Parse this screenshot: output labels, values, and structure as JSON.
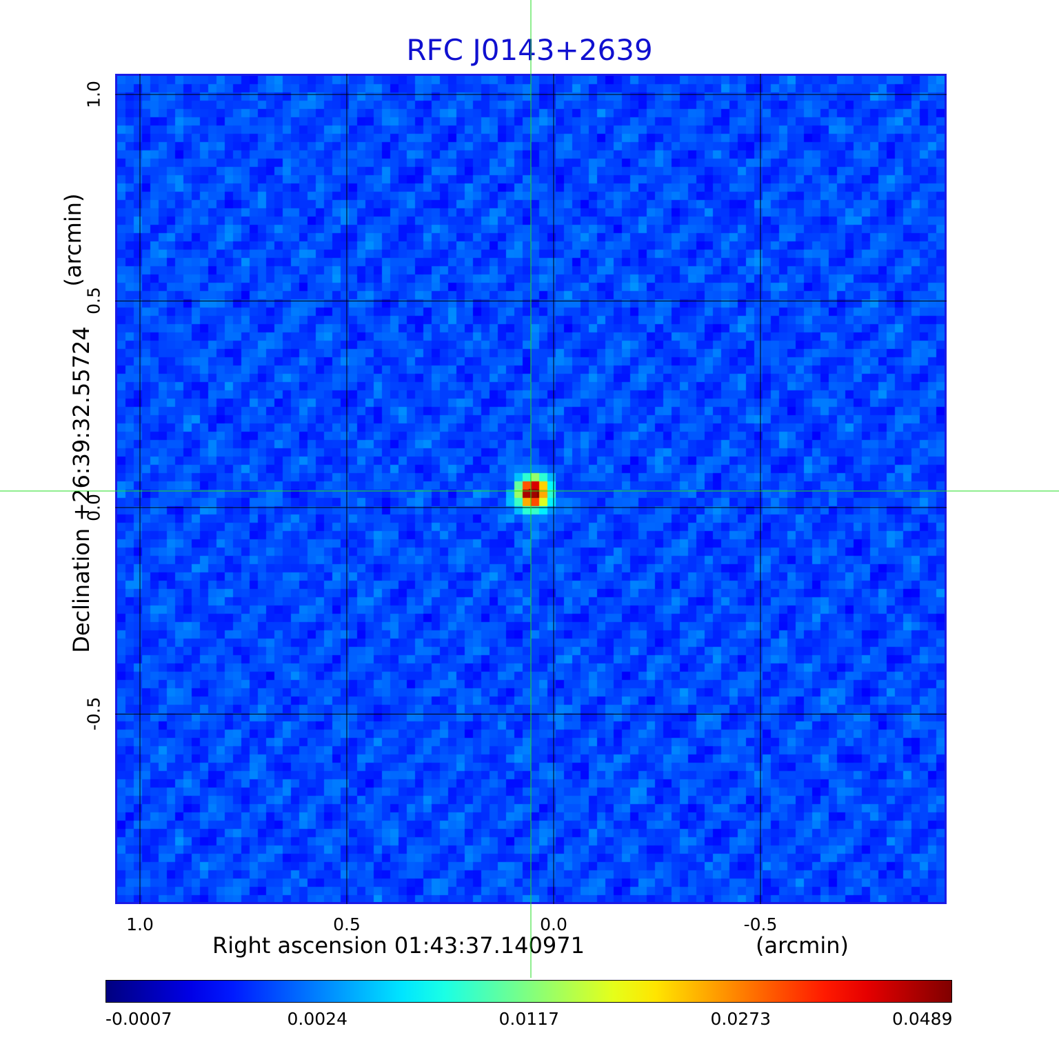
{
  "title": "RFC J0143+2639",
  "chart_data": {
    "type": "heatmap",
    "title": "RFC J0143+2639",
    "xlabel": "Right ascension  01:43:37.140971",
    "xlabel_unit": "(arcmin)",
    "ylabel": "Declination  +26:39:32.55724",
    "ylabel_unit": "(arcmin)",
    "xlim": [
      1.06,
      -0.95
    ],
    "ylim": [
      -0.96,
      1.05
    ],
    "x_ticks": [
      1.0,
      0.5,
      0.0,
      -0.5
    ],
    "x_tick_labels": [
      "1.0",
      "0.5",
      "0.0",
      "-0.5"
    ],
    "y_ticks": [
      1.0,
      0.5,
      0.0,
      -0.5
    ],
    "y_tick_labels": [
      "1.0",
      "0.5",
      "0.0",
      "-0.5"
    ],
    "grid": true,
    "source": {
      "x": 0.055,
      "y": 0.04,
      "peak": 0.0489
    },
    "crosshair": {
      "x": 0.055,
      "y": 0.04
    },
    "colorbar": {
      "ticks": [
        -0.0007,
        0.0024,
        0.0117,
        0.0273,
        0.0489
      ],
      "tick_labels": [
        "-0.0007",
        "0.0024",
        "0.0117",
        "0.0273",
        "0.0489"
      ],
      "colormap": "jet"
    },
    "colors": {
      "title": "#1010d0",
      "frame": "#1a1ae6",
      "crosshair": "#22dd22",
      "grid": "#000000",
      "background_field": "#1b4cf2"
    }
  }
}
